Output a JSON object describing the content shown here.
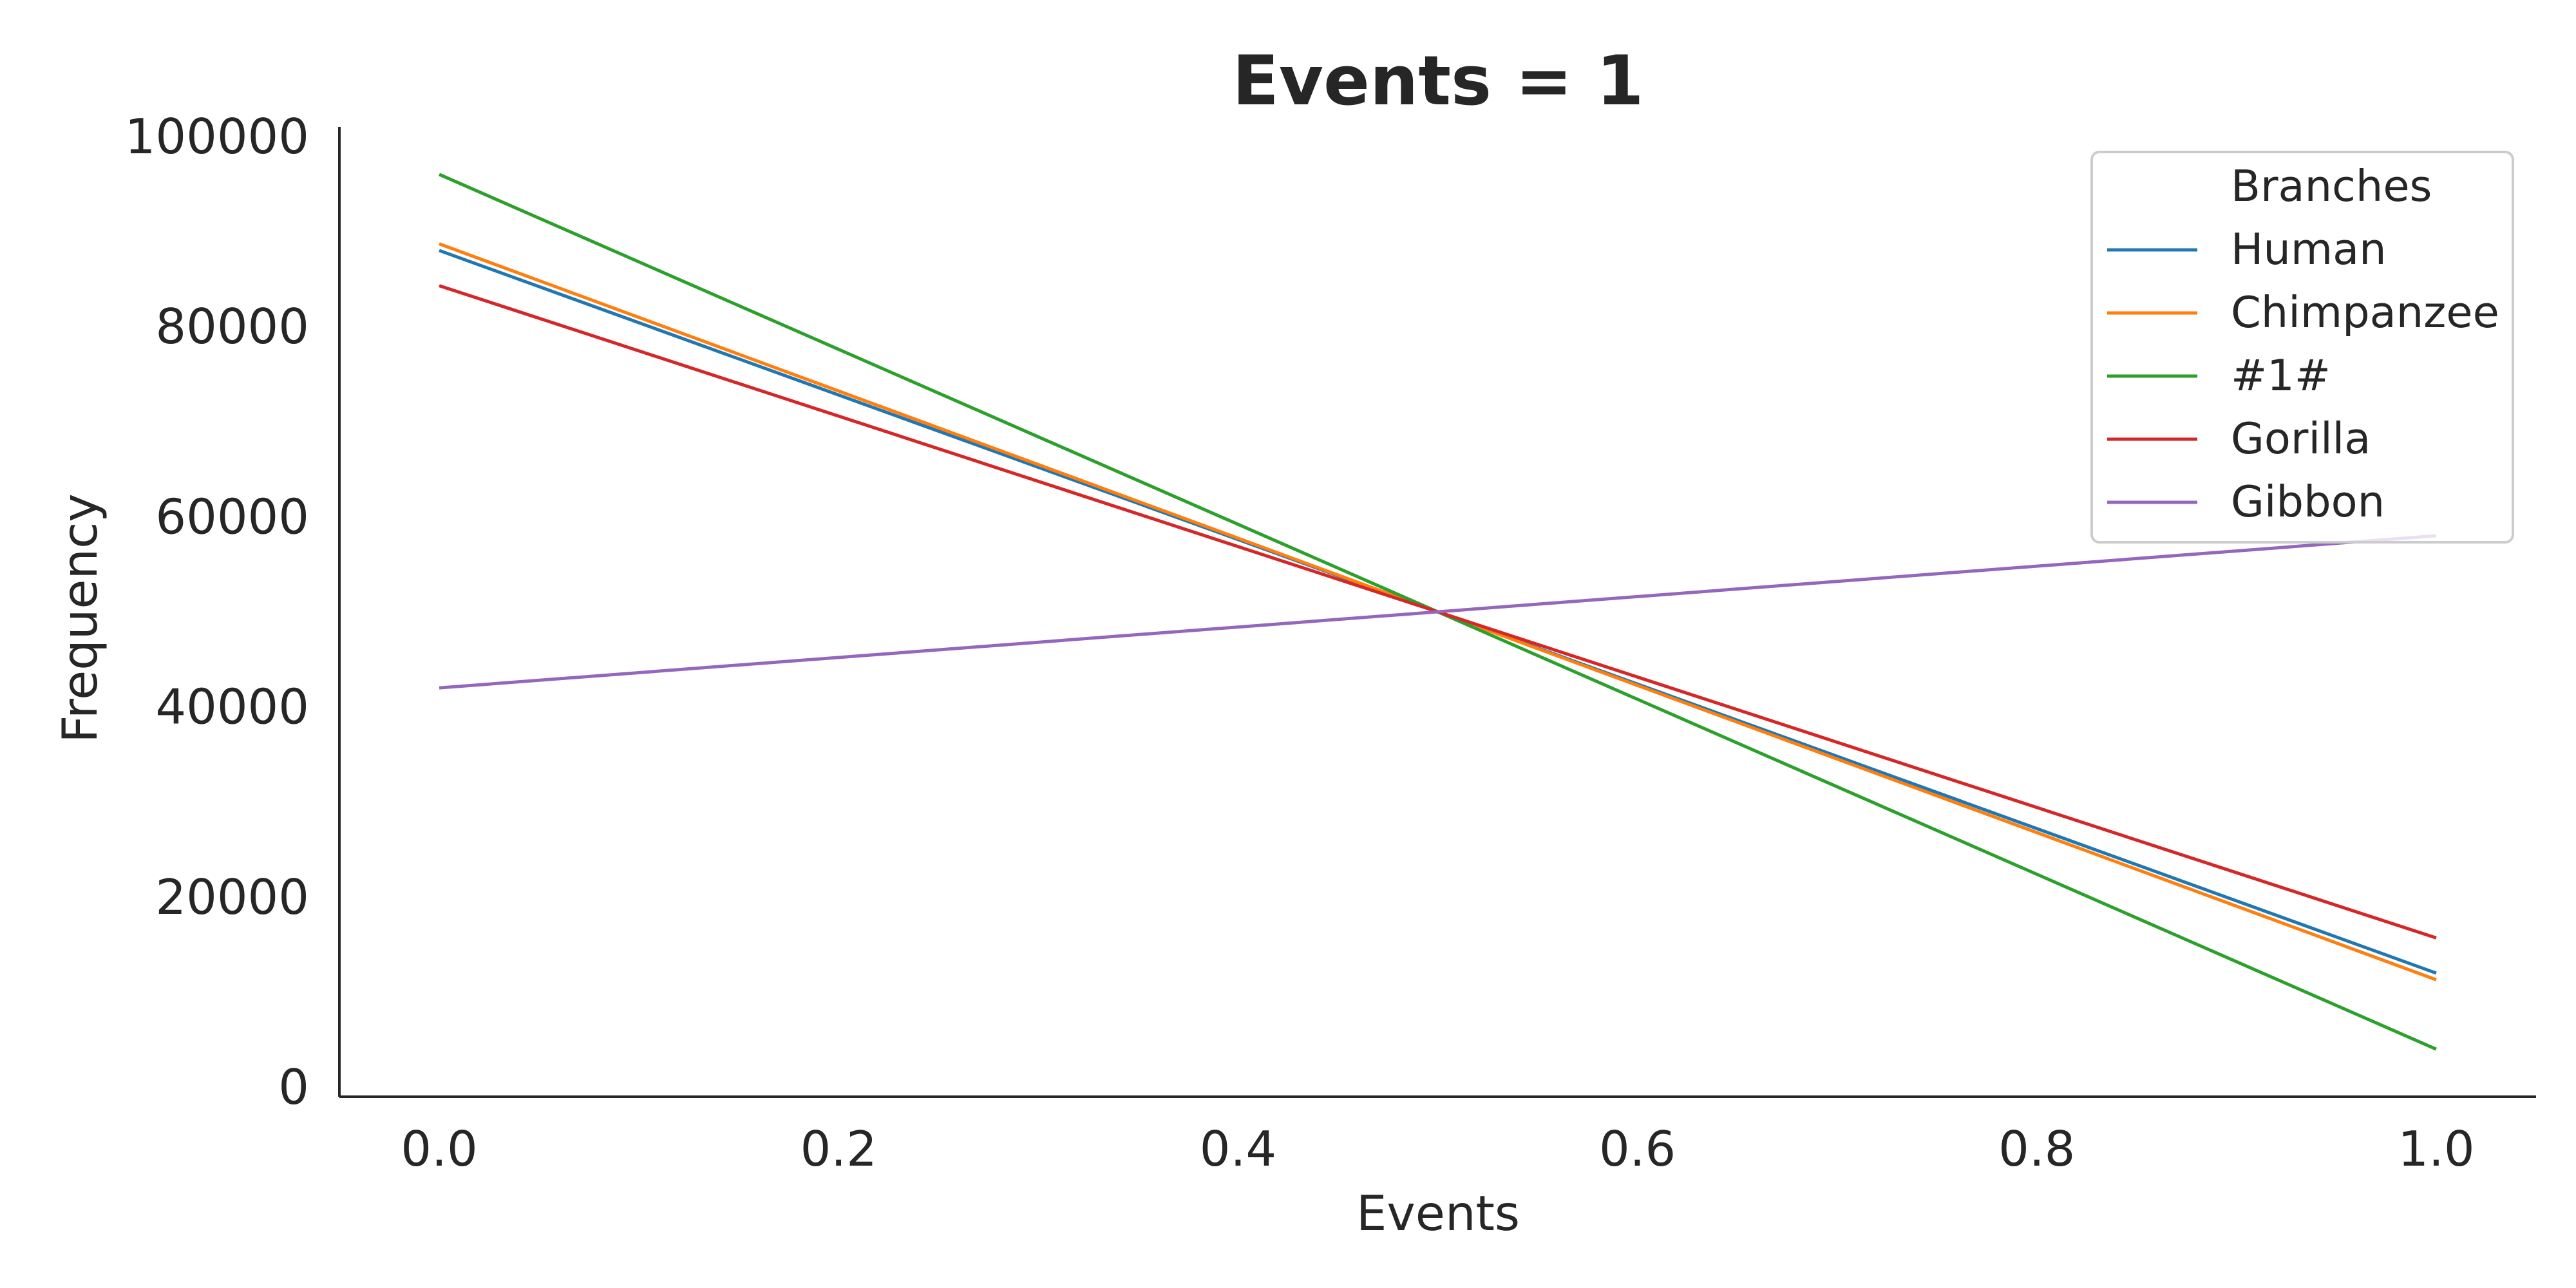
{
  "chart_data": {
    "type": "line",
    "title": "Events = 1",
    "xlabel": "Events",
    "ylabel": "Frequency",
    "xlim": [
      -0.05,
      1.05
    ],
    "ylim": [
      -1000,
      101000
    ],
    "xticks": [
      0.0,
      0.2,
      0.4,
      0.6,
      0.8,
      1.0
    ],
    "xtick_labels": [
      "0.0",
      "0.2",
      "0.4",
      "0.6",
      "0.8",
      "1.0"
    ],
    "yticks": [
      0,
      20000,
      40000,
      60000,
      80000,
      100000
    ],
    "ytick_labels": [
      "0",
      "20000",
      "40000",
      "60000",
      "80000",
      "100000"
    ],
    "grid": false,
    "legend": {
      "title": "Branches",
      "placement": "top-right"
    },
    "x": [
      0.0,
      1.0
    ],
    "series": [
      {
        "name": "Human",
        "values": [
          88000,
          12000
        ],
        "color": "#1f77b4"
      },
      {
        "name": "Chimpanzee",
        "values": [
          88700,
          11300
        ],
        "color": "#ff7f0e"
      },
      {
        "name": "#1#",
        "values": [
          96000,
          4000
        ],
        "color": "#2ca02c"
      },
      {
        "name": "Gorilla",
        "values": [
          84300,
          15700
        ],
        "color": "#d62728"
      },
      {
        "name": "Gibbon",
        "values": [
          42000,
          58000
        ],
        "color": "#9467bd"
      }
    ]
  }
}
